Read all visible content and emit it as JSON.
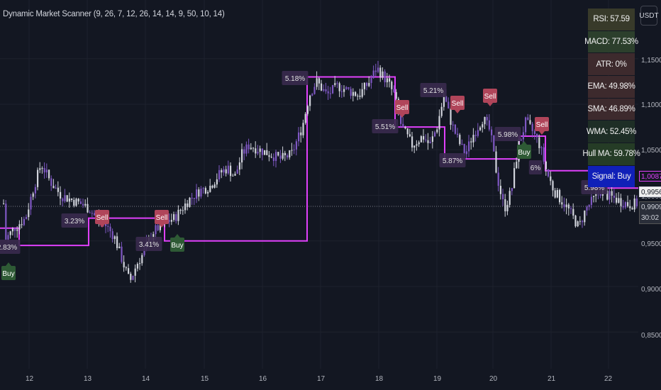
{
  "chart": {
    "title": "Dynamic Market Scanner (9, 26, 7, 12, 26, 14, 14, 9, 50, 10, 14)",
    "currency": "USDT",
    "price_axis": [
      "1,1500",
      "1,1000",
      "1,0500",
      "1,0000",
      "0,9500",
      "0,9000",
      "0,8500"
    ],
    "time_axis": [
      "12",
      "13",
      "14",
      "15",
      "16",
      "17",
      "18",
      "19",
      "20",
      "21",
      "22"
    ],
    "last_price": "0,9909",
    "countdown": "30:02",
    "tag_magenta": "1,0087",
    "tag_white": "0,9956",
    "colors": {
      "background": "#131722",
      "candle": "#d1d4dc",
      "candle_alt": "#7e57c2",
      "support_line": "#e040fb",
      "sell_label": "#b0455a",
      "buy_label": "#2e5a35",
      "pct_label": "#3a2a4e"
    }
  },
  "indicators": [
    {
      "label": "RSI: 57.59",
      "bg": "#383a2a"
    },
    {
      "label": "MACD: 77.53%",
      "bg": "#2c3f2c"
    },
    {
      "label": "ATR: 0%",
      "bg": "#3d2a2d"
    },
    {
      "label": "EMA: 49.98%",
      "bg": "#3d2a2d"
    },
    {
      "label": "SMA: 46.89%",
      "bg": "#3d2a2d"
    },
    {
      "label": "WMA: 52.45%",
      "bg": "#1e2e26"
    },
    {
      "label": "Hull MA: 59.78%",
      "bg": "#253c26"
    },
    {
      "label": "Signal: Buy",
      "bg": "#1020b8"
    }
  ],
  "signals": [
    {
      "type": "buy",
      "text": "Buy"
    },
    {
      "type": "sell",
      "text": "Sell"
    },
    {
      "type": "sell",
      "text": "Sell"
    },
    {
      "type": "buy",
      "text": "Buy"
    },
    {
      "type": "sell",
      "text": "Sell"
    },
    {
      "type": "sell",
      "text": "Sell"
    },
    {
      "type": "sell",
      "text": "Sell"
    },
    {
      "type": "buy",
      "text": "Buy"
    },
    {
      "type": "sell",
      "text": "Sell"
    }
  ],
  "percent_labels": [
    "2.83%",
    "3.23%",
    "3.41%",
    "5.18%",
    "5.51%",
    "5.21%",
    "5.87%",
    "5.98%",
    "6%",
    "5.98%"
  ]
}
